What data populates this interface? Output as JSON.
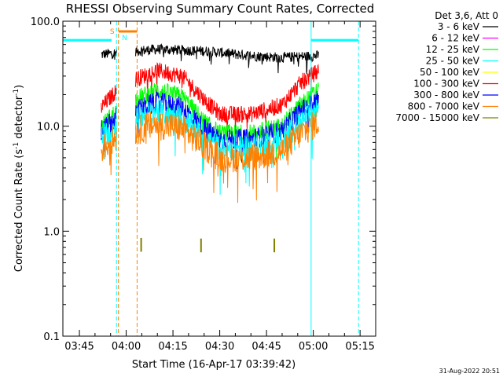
{
  "chart_data": {
    "type": "line",
    "title": "RHESSI Observing Summary Count Rates, Corrected",
    "xlabel": "Start Time (16-Apr-17 03:39:42)",
    "ylabel_main": "Corrected Count Rate (s",
    "ylabel_sup1": "-1",
    "ylabel_mid": " detector",
    "ylabel_sup2": "-1",
    "ylabel_end": ")",
    "yscale": "log",
    "ylim": [
      0.1,
      100.0
    ],
    "y_ticks": [
      {
        "value": 100.0,
        "label": "100.0"
      },
      {
        "value": 10.0,
        "label": "10.0"
      },
      {
        "value": 1.0,
        "label": "1.0"
      },
      {
        "value": 0.1,
        "label": "0.1"
      }
    ],
    "xlim_minutes": [
      219.7,
      320.0
    ],
    "x_ticks": [
      {
        "minute": 225,
        "label": "03:45"
      },
      {
        "minute": 240,
        "label": "04:00"
      },
      {
        "minute": 255,
        "label": "04:15"
      },
      {
        "minute": 270,
        "label": "04:30"
      },
      {
        "minute": 285,
        "label": "04:45"
      },
      {
        "minute": 300,
        "label": "05:00"
      },
      {
        "minute": 315,
        "label": "05:15"
      }
    ],
    "legend_title": "Det 3,6, Att 0",
    "legend_placement": "right",
    "series": [
      {
        "name": "3 - 6 keV",
        "color": "#000000",
        "offset": 0.0
      },
      {
        "name": "6 - 12 keV",
        "color": "#ff00ff",
        "offset": 0.32
      },
      {
        "name": "12 - 25 keV",
        "color": "#00ff00",
        "offset": 0.25
      },
      {
        "name": "25 - 50 keV",
        "color": "#00ffff",
        "offset": 0.2
      },
      {
        "name": "50 - 100 keV",
        "color": "#ffff00",
        "offset": 0.45
      },
      {
        "name": "100 - 300 keV",
        "color": "#ff0000",
        "offset": 0.18
      },
      {
        "name": "300 - 800 keV",
        "color": "#0000ff",
        "offset": 0.3
      },
      {
        "name": "800 - 7000 keV",
        "color": "#ff8000",
        "offset": 0.42
      },
      {
        "name": "7000 - 15000 keV",
        "color": "#808000",
        "offset": 0.0
      }
    ],
    "segments": [
      {
        "start": 232.0,
        "end": 237.0
      },
      {
        "start": 243.0,
        "end": 301.8
      }
    ],
    "profiles": {
      "3 - 6 keV": [
        [
          232.0,
          48
        ],
        [
          237.0,
          50
        ],
        [
          243.0,
          52
        ],
        [
          250.0,
          54
        ],
        [
          265.0,
          52
        ],
        [
          280.0,
          47
        ],
        [
          290.0,
          45
        ],
        [
          301.8,
          47
        ]
      ],
      "100 - 300 keV": [
        [
          232.0,
          15
        ],
        [
          237.0,
          22
        ],
        [
          243.0,
          28
        ],
        [
          250.0,
          34
        ],
        [
          258.0,
          30
        ],
        [
          265.0,
          18
        ],
        [
          270.0,
          13
        ],
        [
          280.0,
          13
        ],
        [
          290.0,
          16
        ],
        [
          296.0,
          26
        ],
        [
          301.8,
          34
        ]
      ],
      "12 - 25 keV": [
        [
          232.0,
          10
        ],
        [
          237.0,
          14
        ],
        [
          243.0,
          18
        ],
        [
          250.0,
          22
        ],
        [
          258.0,
          19
        ],
        [
          265.0,
          11
        ],
        [
          270.0,
          8.5
        ],
        [
          280.0,
          8.5
        ],
        [
          290.0,
          10
        ],
        [
          296.0,
          16
        ],
        [
          301.8,
          22
        ]
      ],
      "300 - 800 keV": [
        [
          232.0,
          9
        ],
        [
          237.0,
          12
        ],
        [
          243.0,
          14
        ],
        [
          250.0,
          17
        ],
        [
          258.0,
          15
        ],
        [
          265.0,
          9.5
        ],
        [
          270.0,
          7.5
        ],
        [
          280.0,
          7.5
        ],
        [
          290.0,
          9
        ],
        [
          296.0,
          14
        ],
        [
          301.8,
          18
        ]
      ],
      "25 - 50 keV": [
        [
          232.0,
          8
        ],
        [
          237.0,
          10
        ],
        [
          243.0,
          12
        ],
        [
          250.0,
          14
        ],
        [
          258.0,
          12
        ],
        [
          265.0,
          8
        ],
        [
          270.0,
          6.2
        ],
        [
          280.0,
          6.2
        ],
        [
          290.0,
          7.5
        ],
        [
          296.0,
          11
        ],
        [
          301.8,
          15
        ]
      ],
      "800 - 7000 keV": [
        [
          232.0,
          6
        ],
        [
          237.0,
          8
        ],
        [
          243.0,
          9
        ],
        [
          250.0,
          10.5
        ],
        [
          258.0,
          9.5
        ],
        [
          265.0,
          6.5
        ],
        [
          270.0,
          5
        ],
        [
          280.0,
          5
        ],
        [
          290.0,
          5.8
        ],
        [
          296.0,
          8.5
        ],
        [
          301.8,
          11
        ]
      ]
    },
    "olive_spikes": [
      {
        "minute": 244.8,
        "value": 0.75
      },
      {
        "minute": 264.0,
        "value": 0.74
      },
      {
        "minute": 287.5,
        "value": 0.74
      }
    ],
    "saa_bars": [
      {
        "start": 219.7,
        "end": 235.3,
        "value": 66
      },
      {
        "start": 299.3,
        "end": 314.5,
        "value": 66
      }
    ],
    "flag_bars": [
      {
        "label": "S",
        "color": "#ff8000",
        "start": 237.6,
        "end": 243.5,
        "value": 80
      }
    ],
    "flag_labels": [
      {
        "label": "S",
        "color": "#ff8000",
        "minute": 235.5
      },
      {
        "label": "N",
        "color": "#00ffff",
        "minute": 239.5
      }
    ],
    "vlines": [
      {
        "minute": 219.7,
        "color": "#00ffff",
        "style": "solid"
      },
      {
        "minute": 236.9,
        "color": "#00ffff",
        "style": "dashed"
      },
      {
        "minute": 237.5,
        "color": "#ff8000",
        "style": "dashed"
      },
      {
        "minute": 243.5,
        "color": "#ff8000",
        "style": "dashed"
      },
      {
        "minute": 299.3,
        "color": "#00ffff",
        "style": "solid"
      },
      {
        "minute": 314.5,
        "color": "#00ffff",
        "style": "dashed"
      }
    ],
    "footer_date": "31-Aug-2022 20:51"
  }
}
